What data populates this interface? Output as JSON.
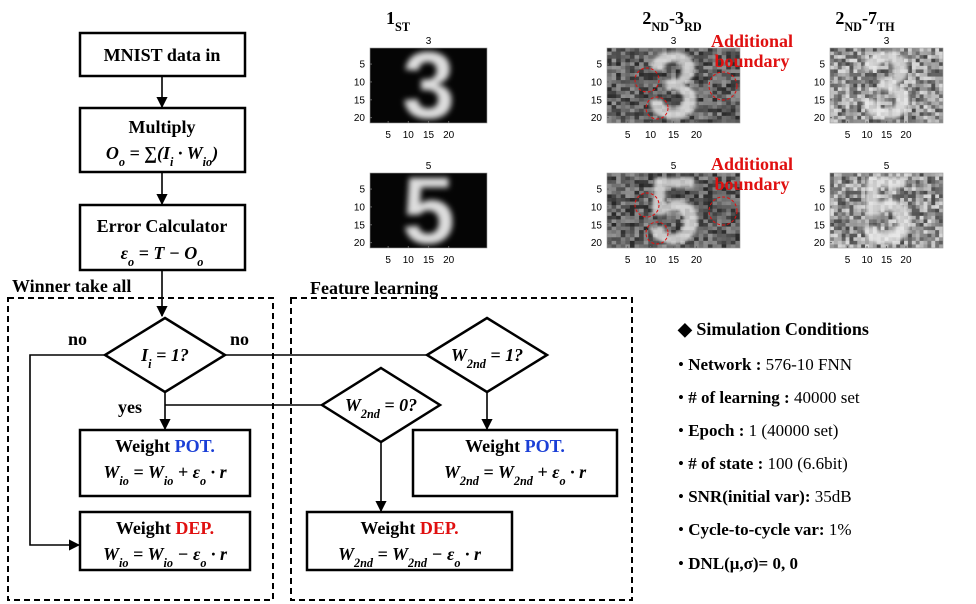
{
  "flowchart": {
    "input": "MNIST data in",
    "multiply": {
      "title": "Multiply",
      "formula": [
        {
          "text": "O",
          "sub": "o"
        },
        {
          "text": " = ∑("
        },
        {
          "text": "I",
          "sub": "i"
        },
        {
          "text": " · "
        },
        {
          "text": "W",
          "sub": "io"
        },
        {
          "text": ")"
        }
      ]
    },
    "error": {
      "title": "Error Calculator",
      "formula": [
        {
          "text": "ε",
          "sub": "o"
        },
        {
          "text": " = T − "
        },
        {
          "text": "O",
          "sub": "o"
        }
      ]
    },
    "winner_label": "Winner take all",
    "feature_label": "Feature learning",
    "decision_input": [
      {
        "text": "I",
        "sub": "i"
      },
      {
        "text": " = 1"
      },
      {
        "text": "?"
      }
    ],
    "decision_2nd_1": [
      {
        "text": "W",
        "sub": "2nd"
      },
      {
        "text": " = 1"
      },
      {
        "text": "?"
      }
    ],
    "decision_2nd_0": [
      {
        "text": "W",
        "sub": "2nd"
      },
      {
        "text": " = 0"
      },
      {
        "text": "?"
      }
    ],
    "branch_labels": {
      "no_left": "no",
      "no_right": "no",
      "yes": "yes"
    },
    "pot_left": {
      "title": "Weight",
      "tag": "POT.",
      "tag_color": "#1a3fd6",
      "formula": [
        {
          "text": "W",
          "sub": "io"
        },
        {
          "text": " = "
        },
        {
          "text": "W",
          "sub": "io"
        },
        {
          "text": " + "
        },
        {
          "text": "ε",
          "sub": "o"
        },
        {
          "text": " · r"
        }
      ]
    },
    "dep_left": {
      "title": "Weight",
      "tag": "DEP.",
      "tag_color": "#e01010",
      "formula": [
        {
          "text": "W",
          "sub": "io"
        },
        {
          "text": " = "
        },
        {
          "text": "W",
          "sub": "io"
        },
        {
          "text": " − "
        },
        {
          "text": "ε",
          "sub": "o"
        },
        {
          "text": " · r"
        }
      ]
    },
    "pot_right": {
      "title": "Weight",
      "tag": "POT.",
      "tag_color": "#1a3fd6",
      "formula": [
        {
          "text": "W",
          "sub": "2nd"
        },
        {
          "text": " = "
        },
        {
          "text": "W",
          "sub": "2nd"
        },
        {
          "text": " + "
        },
        {
          "text": "ε",
          "sub": "o"
        },
        {
          "text": " · r"
        }
      ]
    },
    "dep_right": {
      "title": "Weight",
      "tag": "DEP.",
      "tag_color": "#e01010",
      "formula": [
        {
          "text": "W",
          "sub": "2nd"
        },
        {
          "text": " = "
        },
        {
          "text": "W",
          "sub": "2nd"
        },
        {
          "text": " − "
        },
        {
          "text": "ε",
          "sub": "o"
        },
        {
          "text": " · r"
        }
      ]
    }
  },
  "panels": {
    "columns": [
      [
        {
          "text": "1",
          "sub": "ST"
        }
      ],
      [
        {
          "text": "2",
          "sub": "ND"
        },
        {
          "text": "-3",
          "sub": "RD"
        }
      ],
      [
        {
          "text": "2",
          "sub": "ND"
        },
        {
          "text": "-7",
          "sub": "TH"
        }
      ]
    ],
    "images": [
      {
        "digit": "3",
        "xticks": [
          5,
          10,
          15,
          20
        ],
        "yticks": [
          5,
          10,
          15,
          20
        ]
      },
      {
        "digit": "5",
        "xticks": [
          5,
          10,
          15,
          20
        ],
        "yticks": [
          5,
          10,
          15,
          20
        ]
      },
      {
        "digit": "3",
        "xticks": [
          5,
          10,
          15,
          20
        ],
        "yticks": [
          5,
          10,
          15,
          20
        ]
      },
      {
        "digit": "5",
        "xticks": [
          5,
          10,
          15,
          20
        ],
        "yticks": [
          5,
          10,
          15,
          20
        ]
      },
      {
        "digit": "3",
        "xticks": [
          5,
          10,
          15,
          20
        ],
        "yticks": [
          5,
          10,
          15,
          20
        ]
      },
      {
        "digit": "5",
        "xticks": [
          5,
          10,
          15,
          20
        ],
        "yticks": [
          5,
          10,
          15,
          20
        ]
      }
    ],
    "annotations": [
      [
        "Additional",
        "boundary"
      ],
      [
        "Additional",
        "boundary"
      ]
    ]
  },
  "conditions": {
    "title": "Simulation Conditions",
    "items": [
      {
        "label": "Network :",
        "value": "576-10 FNN"
      },
      {
        "label": "# of learning :",
        "value": "40000 set"
      },
      {
        "label": "Epoch :",
        "value": "1 (40000 set)"
      },
      {
        "label": "# of state :",
        "value": "100 (6.6bit)"
      },
      {
        "label": "SNR(initial var):",
        "value": "35dB"
      },
      {
        "label": "Cycle-to-cycle var:",
        "value": "1%"
      },
      {
        "label": "DNL(μ,σ)= 0, 0"
      }
    ]
  }
}
